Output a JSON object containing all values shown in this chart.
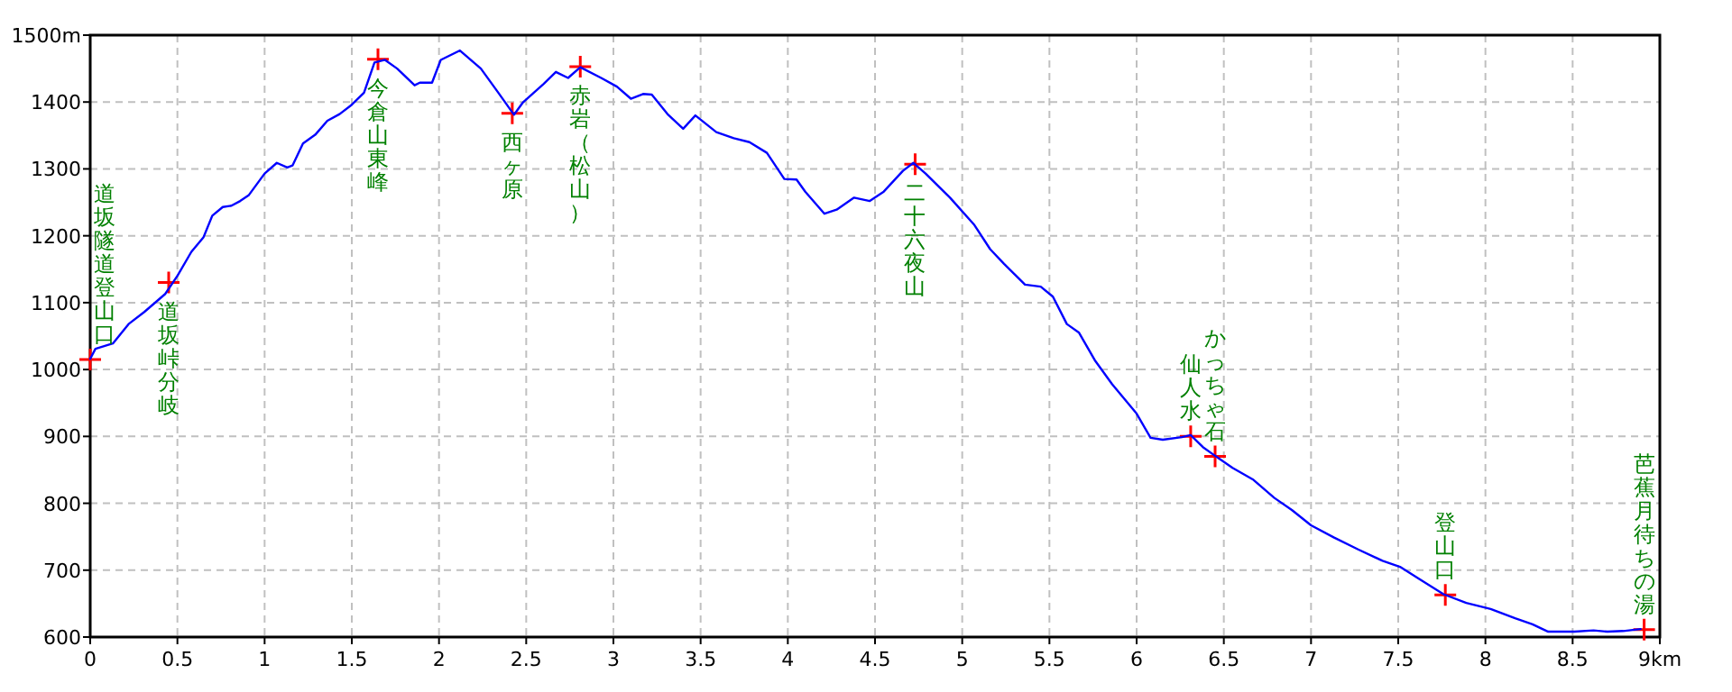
{
  "chart_data": {
    "type": "line",
    "xlim": [
      0,
      9
    ],
    "ylim": [
      600,
      1500
    ],
    "xticks": [
      0,
      0.5,
      1,
      1.5,
      2,
      2.5,
      3,
      3.5,
      4,
      4.5,
      5,
      5.5,
      6,
      6.5,
      7,
      7.5,
      8,
      8.5,
      {
        "value": 9,
        "label": "9km"
      }
    ],
    "yticks": [
      600,
      700,
      800,
      900,
      1000,
      1100,
      1200,
      1300,
      1400,
      {
        "value": 1500,
        "label": "1500m"
      }
    ],
    "grid": true,
    "series": [
      {
        "type": "line",
        "color": "#0000ff",
        "marker": "none",
        "x": [
          0,
          0.03,
          0.13,
          0.22,
          0.31,
          0.43,
          0.5,
          0.58,
          0.65,
          0.7,
          0.76,
          0.81,
          0.86,
          0.91,
          1.0,
          1.07,
          1.13,
          1.16,
          1.22,
          1.29,
          1.36,
          1.43,
          1.5,
          1.57,
          1.63,
          1.69,
          1.76,
          1.86,
          1.89,
          1.96,
          2.01,
          2.12,
          2.24,
          2.34,
          2.43,
          2.48,
          2.6,
          2.67,
          2.74,
          2.81,
          2.93,
          3.02,
          3.1,
          3.17,
          3.22,
          3.31,
          3.4,
          3.47,
          3.59,
          3.69,
          3.78,
          3.88,
          3.98,
          4.05,
          4.1,
          4.21,
          4.28,
          4.38,
          4.47,
          4.55,
          4.66,
          4.72,
          4.79,
          4.93,
          5.07,
          5.16,
          5.24,
          5.36,
          5.45,
          5.52,
          5.6,
          5.67,
          5.76,
          5.86,
          6.0,
          6.08,
          6.15,
          6.26,
          6.31,
          6.38,
          6.45,
          6.55,
          6.67,
          6.79,
          6.89,
          7.0,
          7.13,
          7.27,
          7.41,
          7.51,
          7.62,
          7.76,
          7.89,
          8.03,
          8.17,
          8.27,
          8.36,
          8.51,
          8.62,
          8.7,
          8.79,
          8.89
        ],
        "values": [
          1016,
          1031,
          1039,
          1068,
          1086,
          1113,
          1140,
          1176,
          1198,
          1230,
          1243,
          1245,
          1252,
          1261,
          1293,
          1309,
          1302,
          1305,
          1338,
          1351,
          1372,
          1382,
          1396,
          1414,
          1459,
          1463,
          1450,
          1425,
          1429,
          1429,
          1463,
          1477,
          1450,
          1414,
          1381,
          1399,
          1427,
          1445,
          1436,
          1452,
          1436,
          1423,
          1405,
          1412,
          1411,
          1382,
          1360,
          1380,
          1355,
          1346,
          1340,
          1324,
          1285,
          1284,
          1266,
          1233,
          1239,
          1257,
          1252,
          1266,
          1297,
          1309,
          1293,
          1257,
          1216,
          1180,
          1158,
          1127,
          1124,
          1109,
          1068,
          1055,
          1014,
          978,
          934,
          898,
          895,
          899,
          902,
          884,
          871,
          853,
          835,
          808,
          790,
          767,
          749,
          731,
          714,
          705,
          687,
          664,
          651,
          642,
          628,
          619,
          608,
          608,
          610,
          608,
          609,
          612
        ]
      },
      {
        "type": "scatter",
        "color": "#ff0000",
        "marker": "cross",
        "x": [
          0,
          0.45,
          1.65,
          2.42,
          2.81,
          4.73,
          6.31,
          6.45,
          7.77,
          8.91
        ],
        "values": [
          1015,
          1130,
          1464,
          1383,
          1453,
          1307,
          900,
          870,
          663,
          611
        ]
      }
    ],
    "annotations": [
      {
        "text": "道坂隧道登山口",
        "x": 0,
        "y": 1015
      },
      {
        "text": "道坂峠分岐",
        "x": 0.45,
        "y": 1130
      },
      {
        "text": "今倉山東峰",
        "x": 1.65,
        "y": 1464
      },
      {
        "text": "西ヶ原",
        "x": 2.42,
        "y": 1383
      },
      {
        "text": "赤岩（松山）",
        "x": 2.81,
        "y": 1453
      },
      {
        "text": "二十六夜山",
        "x": 4.73,
        "y": 1307
      },
      {
        "text": "仙人水",
        "x": 6.31,
        "y": 900
      },
      {
        "text": "かっちゃ石",
        "x": 6.45,
        "y": 870
      },
      {
        "text": "登山口",
        "x": 7.77,
        "y": 663
      },
      {
        "text": "芭蕉月待ちの湯",
        "x": 8.91,
        "y": 611
      }
    ]
  }
}
